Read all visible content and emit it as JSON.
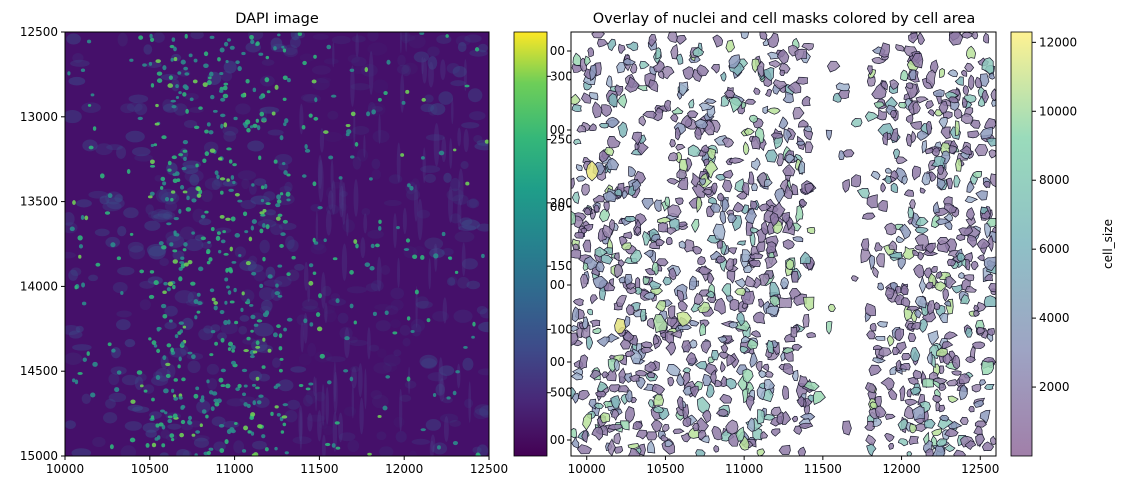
{
  "chart_data": [
    {
      "type": "heatmap",
      "title": "DAPI image",
      "xlim": [
        10000,
        12500
      ],
      "ylim": [
        15000,
        12500
      ],
      "x_ticks": [
        "10000",
        "10500",
        "11000",
        "11500",
        "12000",
        "12500"
      ],
      "y_ticks": [
        "12500",
        "13000",
        "13500",
        "14000",
        "14500",
        "15000"
      ],
      "colormap": "viridis"
    },
    {
      "type": "colorbar",
      "ticks": [
        "500",
        "1000",
        "1500",
        "2000",
        "2500",
        "3000"
      ],
      "range": [
        0,
        3350
      ],
      "colormap": "viridis"
    },
    {
      "type": "scatter",
      "title": "Overlay of nuclei and cell masks colored by cell area",
      "xlim": [
        9900,
        12600
      ],
      "x_ticks": [
        "10000",
        "10500",
        "11000",
        "11500",
        "12000",
        "12500"
      ],
      "overlapped_y_ticks": [
        "00",
        "00",
        "00",
        "00",
        "00",
        "00",
        "00",
        "00"
      ],
      "colorbar": {
        "label": "cell_size",
        "ticks": [
          "2000",
          "4000",
          "6000",
          "8000",
          "10000",
          "12000"
        ],
        "range": [
          0,
          12300
        ],
        "colormap": "viridis",
        "alpha": 0.5
      }
    }
  ]
}
